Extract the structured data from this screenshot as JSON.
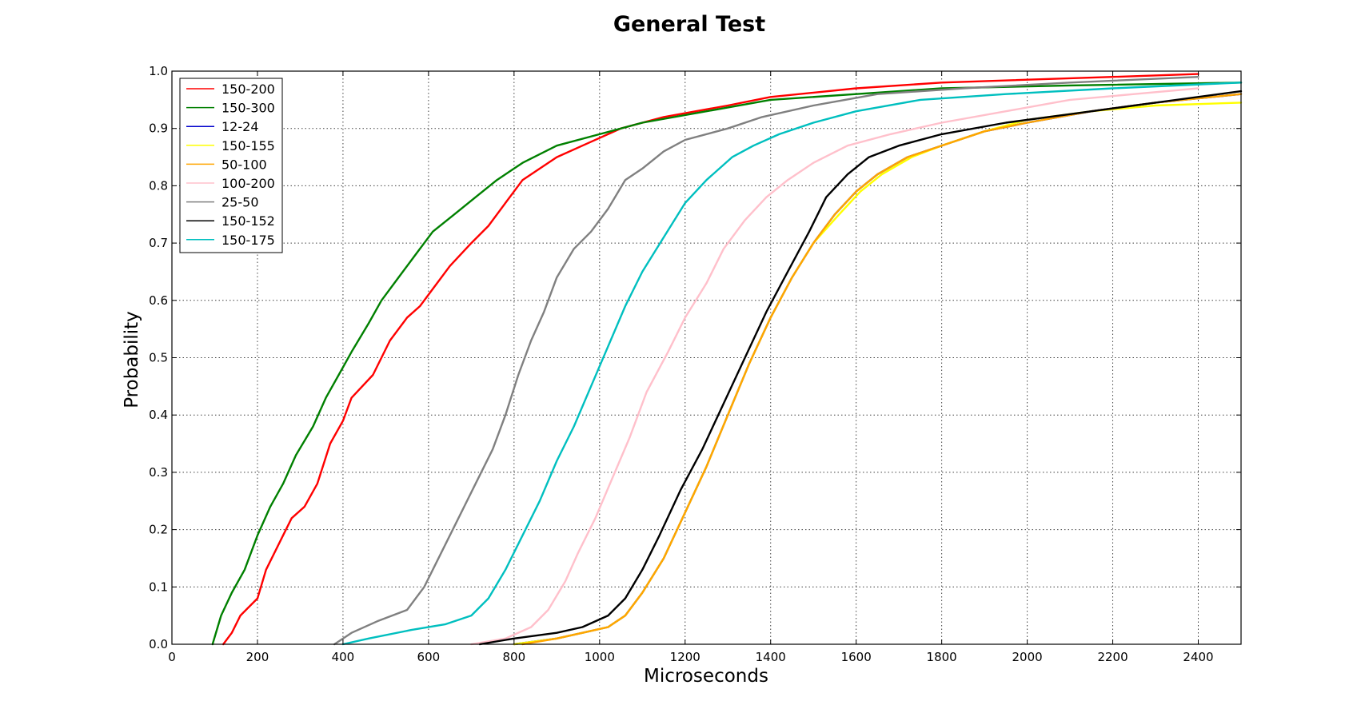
{
  "chart_data": {
    "type": "line",
    "title": "General Test",
    "xlabel": "Microseconds",
    "ylabel": "Probability",
    "xlim": [
      0,
      2500
    ],
    "ylim": [
      0,
      1.0
    ],
    "xticks": [
      0,
      200,
      400,
      600,
      800,
      1000,
      1200,
      1400,
      1600,
      1800,
      2000,
      2200,
      2400
    ],
    "yticks": [
      0.0,
      0.1,
      0.2,
      0.3,
      0.4,
      0.5,
      0.6,
      0.7,
      0.8,
      0.9,
      1.0
    ],
    "grid": true,
    "legend_position": "top-left",
    "series": [
      {
        "name": "150-200",
        "color": "#ff0000",
        "points": [
          [
            120,
            0.0
          ],
          [
            140,
            0.02
          ],
          [
            160,
            0.05
          ],
          [
            200,
            0.08
          ],
          [
            220,
            0.13
          ],
          [
            260,
            0.19
          ],
          [
            280,
            0.22
          ],
          [
            310,
            0.24
          ],
          [
            340,
            0.28
          ],
          [
            370,
            0.35
          ],
          [
            400,
            0.39
          ],
          [
            420,
            0.43
          ],
          [
            470,
            0.47
          ],
          [
            510,
            0.53
          ],
          [
            550,
            0.57
          ],
          [
            580,
            0.59
          ],
          [
            610,
            0.62
          ],
          [
            650,
            0.66
          ],
          [
            700,
            0.7
          ],
          [
            740,
            0.73
          ],
          [
            780,
            0.77
          ],
          [
            820,
            0.81
          ],
          [
            900,
            0.85
          ],
          [
            960,
            0.87
          ],
          [
            1050,
            0.9
          ],
          [
            1150,
            0.92
          ],
          [
            1300,
            0.94
          ],
          [
            1400,
            0.955
          ],
          [
            1600,
            0.97
          ],
          [
            1800,
            0.98
          ],
          [
            2200,
            0.99
          ],
          [
            2400,
            0.995
          ]
        ]
      },
      {
        "name": "150-300",
        "color": "#008000",
        "points": [
          [
            95,
            0.0
          ],
          [
            115,
            0.05
          ],
          [
            140,
            0.09
          ],
          [
            170,
            0.13
          ],
          [
            200,
            0.19
          ],
          [
            230,
            0.24
          ],
          [
            260,
            0.28
          ],
          [
            290,
            0.33
          ],
          [
            330,
            0.38
          ],
          [
            360,
            0.43
          ],
          [
            390,
            0.47
          ],
          [
            420,
            0.51
          ],
          [
            460,
            0.56
          ],
          [
            490,
            0.6
          ],
          [
            530,
            0.64
          ],
          [
            570,
            0.68
          ],
          [
            610,
            0.72
          ],
          [
            660,
            0.75
          ],
          [
            710,
            0.78
          ],
          [
            760,
            0.81
          ],
          [
            820,
            0.84
          ],
          [
            900,
            0.87
          ],
          [
            1000,
            0.89
          ],
          [
            1100,
            0.91
          ],
          [
            1250,
            0.93
          ],
          [
            1400,
            0.95
          ],
          [
            1600,
            0.96
          ],
          [
            1800,
            0.97
          ],
          [
            2100,
            0.975
          ],
          [
            2500,
            0.98
          ]
        ]
      },
      {
        "name": "12-24",
        "color": "#0000cc",
        "points": [
          [
            800,
            0.0
          ],
          [
            900,
            0.01
          ],
          [
            960,
            0.02
          ],
          [
            1020,
            0.03
          ],
          [
            1060,
            0.05
          ],
          [
            1100,
            0.09
          ],
          [
            1150,
            0.15
          ],
          [
            1200,
            0.23
          ],
          [
            1250,
            0.31
          ],
          [
            1300,
            0.4
          ],
          [
            1350,
            0.49
          ],
          [
            1400,
            0.57
          ],
          [
            1450,
            0.64
          ],
          [
            1500,
            0.7
          ],
          [
            1550,
            0.75
          ],
          [
            1600,
            0.79
          ],
          [
            1650,
            0.82
          ],
          [
            1720,
            0.85
          ],
          [
            1800,
            0.87
          ],
          [
            1900,
            0.895
          ],
          [
            2000,
            0.91
          ],
          [
            2150,
            0.93
          ],
          [
            2300,
            0.945
          ],
          [
            2500,
            0.96
          ]
        ]
      },
      {
        "name": "150-155",
        "color": "#ffff00",
        "points": [
          [
            800,
            0.0
          ],
          [
            900,
            0.01
          ],
          [
            960,
            0.02
          ],
          [
            1020,
            0.03
          ],
          [
            1060,
            0.05
          ],
          [
            1100,
            0.09
          ],
          [
            1150,
            0.15
          ],
          [
            1200,
            0.23
          ],
          [
            1250,
            0.31
          ],
          [
            1300,
            0.4
          ],
          [
            1350,
            0.49
          ],
          [
            1400,
            0.57
          ],
          [
            1450,
            0.64
          ],
          [
            1500,
            0.7
          ],
          [
            1560,
            0.75
          ],
          [
            1610,
            0.79
          ],
          [
            1660,
            0.82
          ],
          [
            1730,
            0.85
          ],
          [
            1800,
            0.87
          ],
          [
            1900,
            0.895
          ],
          [
            2000,
            0.915
          ],
          [
            2150,
            0.93
          ],
          [
            2300,
            0.94
          ],
          [
            2500,
            0.945
          ]
        ]
      },
      {
        "name": "50-100",
        "color": "#ffa500",
        "points": [
          [
            820,
            0.0
          ],
          [
            900,
            0.01
          ],
          [
            960,
            0.02
          ],
          [
            1020,
            0.03
          ],
          [
            1060,
            0.05
          ],
          [
            1100,
            0.09
          ],
          [
            1150,
            0.15
          ],
          [
            1200,
            0.23
          ],
          [
            1250,
            0.31
          ],
          [
            1300,
            0.4
          ],
          [
            1350,
            0.49
          ],
          [
            1400,
            0.57
          ],
          [
            1450,
            0.64
          ],
          [
            1500,
            0.7
          ],
          [
            1550,
            0.75
          ],
          [
            1600,
            0.79
          ],
          [
            1650,
            0.82
          ],
          [
            1720,
            0.85
          ],
          [
            1800,
            0.87
          ],
          [
            1900,
            0.895
          ],
          [
            2000,
            0.91
          ],
          [
            2150,
            0.93
          ],
          [
            2300,
            0.945
          ],
          [
            2500,
            0.96
          ]
        ]
      },
      {
        "name": "100-200",
        "color": "#ffc0cb",
        "points": [
          [
            700,
            0.0
          ],
          [
            780,
            0.01
          ],
          [
            840,
            0.03
          ],
          [
            880,
            0.06
          ],
          [
            920,
            0.11
          ],
          [
            950,
            0.16
          ],
          [
            990,
            0.22
          ],
          [
            1030,
            0.29
          ],
          [
            1070,
            0.36
          ],
          [
            1110,
            0.44
          ],
          [
            1160,
            0.51
          ],
          [
            1200,
            0.57
          ],
          [
            1250,
            0.63
          ],
          [
            1290,
            0.69
          ],
          [
            1340,
            0.74
          ],
          [
            1390,
            0.78
          ],
          [
            1440,
            0.81
          ],
          [
            1500,
            0.84
          ],
          [
            1580,
            0.87
          ],
          [
            1680,
            0.89
          ],
          [
            1800,
            0.91
          ],
          [
            1950,
            0.93
          ],
          [
            2100,
            0.95
          ],
          [
            2250,
            0.96
          ],
          [
            2400,
            0.97
          ]
        ]
      },
      {
        "name": "25-50",
        "color": "#808080",
        "points": [
          [
            380,
            0.0
          ],
          [
            420,
            0.02
          ],
          [
            480,
            0.04
          ],
          [
            550,
            0.06
          ],
          [
            590,
            0.1
          ],
          [
            630,
            0.16
          ],
          [
            670,
            0.22
          ],
          [
            710,
            0.28
          ],
          [
            750,
            0.34
          ],
          [
            780,
            0.4
          ],
          [
            810,
            0.47
          ],
          [
            840,
            0.53
          ],
          [
            870,
            0.58
          ],
          [
            900,
            0.64
          ],
          [
            940,
            0.69
          ],
          [
            980,
            0.72
          ],
          [
            1020,
            0.76
          ],
          [
            1060,
            0.81
          ],
          [
            1100,
            0.83
          ],
          [
            1150,
            0.86
          ],
          [
            1200,
            0.88
          ],
          [
            1300,
            0.9
          ],
          [
            1380,
            0.92
          ],
          [
            1500,
            0.94
          ],
          [
            1650,
            0.96
          ],
          [
            1850,
            0.97
          ],
          [
            2100,
            0.98
          ],
          [
            2400,
            0.99
          ]
        ]
      },
      {
        "name": "150-152",
        "color": "#000000",
        "points": [
          [
            720,
            0.0
          ],
          [
            800,
            0.01
          ],
          [
            900,
            0.02
          ],
          [
            960,
            0.03
          ],
          [
            1020,
            0.05
          ],
          [
            1060,
            0.08
          ],
          [
            1100,
            0.13
          ],
          [
            1140,
            0.19
          ],
          [
            1190,
            0.27
          ],
          [
            1240,
            0.34
          ],
          [
            1290,
            0.42
          ],
          [
            1340,
            0.5
          ],
          [
            1390,
            0.58
          ],
          [
            1440,
            0.65
          ],
          [
            1490,
            0.72
          ],
          [
            1530,
            0.78
          ],
          [
            1580,
            0.82
          ],
          [
            1630,
            0.85
          ],
          [
            1700,
            0.87
          ],
          [
            1800,
            0.89
          ],
          [
            1950,
            0.91
          ],
          [
            2100,
            0.925
          ],
          [
            2300,
            0.945
          ],
          [
            2500,
            0.965
          ]
        ]
      },
      {
        "name": "150-175",
        "color": "#00bfbf",
        "points": [
          [
            400,
            0.0
          ],
          [
            460,
            0.01
          ],
          [
            560,
            0.025
          ],
          [
            640,
            0.035
          ],
          [
            700,
            0.05
          ],
          [
            740,
            0.08
          ],
          [
            780,
            0.13
          ],
          [
            820,
            0.19
          ],
          [
            860,
            0.25
          ],
          [
            900,
            0.32
          ],
          [
            940,
            0.38
          ],
          [
            980,
            0.45
          ],
          [
            1020,
            0.52
          ],
          [
            1060,
            0.59
          ],
          [
            1100,
            0.65
          ],
          [
            1150,
            0.71
          ],
          [
            1200,
            0.77
          ],
          [
            1250,
            0.81
          ],
          [
            1310,
            0.85
          ],
          [
            1360,
            0.87
          ],
          [
            1420,
            0.89
          ],
          [
            1500,
            0.91
          ],
          [
            1600,
            0.93
          ],
          [
            1750,
            0.95
          ],
          [
            1950,
            0.96
          ],
          [
            2200,
            0.97
          ],
          [
            2500,
            0.98
          ]
        ]
      }
    ]
  }
}
